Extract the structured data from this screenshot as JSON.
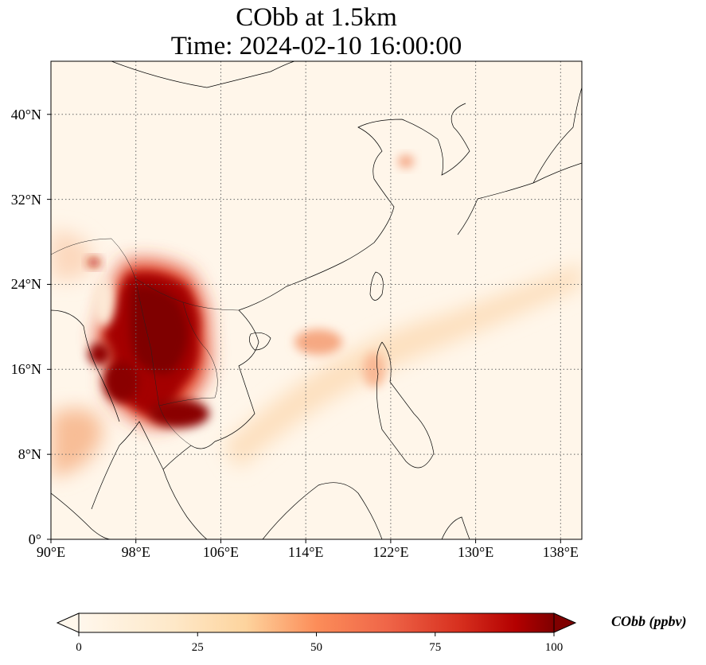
{
  "title_line1": "CObb at 1.5km",
  "title_line2": "Time: 2024-02-10 16:00:00",
  "map": {
    "extent": {
      "lon_min": 90,
      "lon_max": 140,
      "lat_min": 0,
      "lat_max": 45
    },
    "lat_ticks": [
      {
        "value": 0,
        "label": "0°"
      },
      {
        "value": 8,
        "label": "8°N"
      },
      {
        "value": 16,
        "label": "16°N"
      },
      {
        "value": 24,
        "label": "24°N"
      },
      {
        "value": 32,
        "label": "32°N"
      },
      {
        "value": 40,
        "label": "40°N"
      }
    ],
    "lon_ticks": [
      {
        "value": 90,
        "label": "90°E"
      },
      {
        "value": 98,
        "label": "98°E"
      },
      {
        "value": 106,
        "label": "106°E"
      },
      {
        "value": 114,
        "label": "114°E"
      },
      {
        "value": 122,
        "label": "122°E"
      },
      {
        "value": 130,
        "label": "130°E"
      },
      {
        "value": 138,
        "label": "138°E"
      }
    ],
    "gridlines": "dotted"
  },
  "colorbar": {
    "title": "CObb (ppbv)",
    "min": 0,
    "max": 100,
    "extend": "both",
    "colormap": "OrRd",
    "ticks": [
      {
        "value": 0,
        "label": "0"
      },
      {
        "value": 25,
        "label": "25"
      },
      {
        "value": 50,
        "label": "50"
      },
      {
        "value": 75,
        "label": "75"
      },
      {
        "value": 100,
        "label": "100"
      }
    ]
  }
}
